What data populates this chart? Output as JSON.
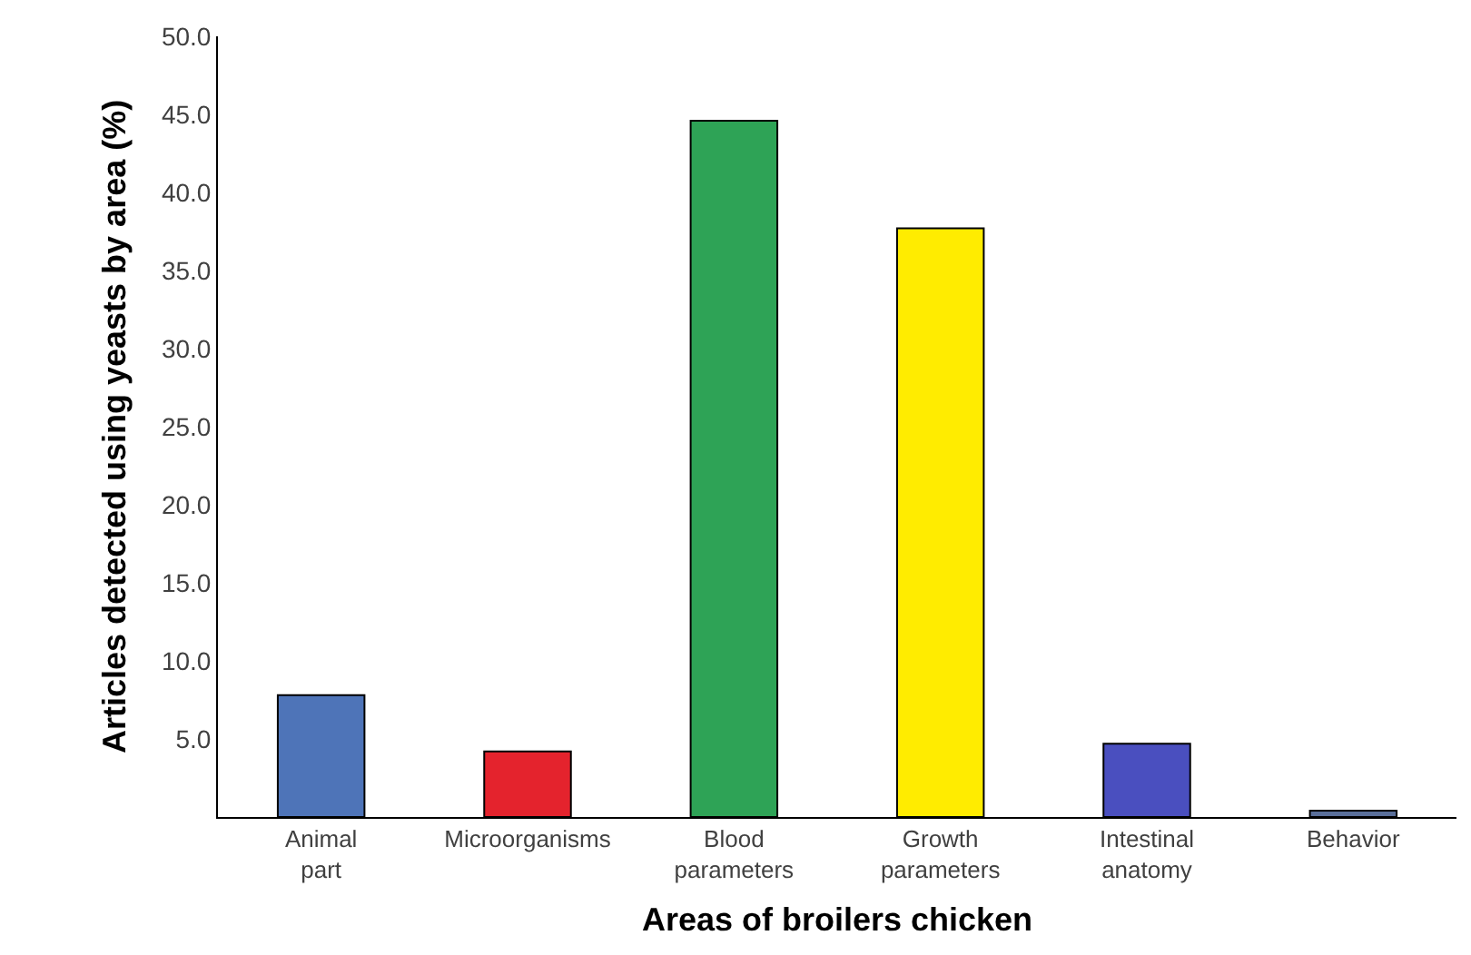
{
  "chart_data": {
    "type": "bar",
    "xlabel": "Areas of broilers chicken",
    "ylabel": "Articles detected using yeasts by area (%)",
    "categories": [
      "Animal part",
      "Microorganisms",
      "Blood parameters",
      "Growth parameters",
      "Intestinal anatomy",
      "Behavior"
    ],
    "values": [
      7.8,
      4.2,
      44.6,
      37.7,
      4.7,
      0.4
    ],
    "colors": [
      "#4e74b8",
      "#e4232d",
      "#2ea356",
      "#ffec00",
      "#4a4fbf",
      "#5a6f9a"
    ],
    "ylim": [
      0,
      50
    ],
    "yticks": [
      {
        "value": 5,
        "label": "5.0"
      },
      {
        "value": 10,
        "label": "10.0"
      },
      {
        "value": 15,
        "label": "15.0"
      },
      {
        "value": 20,
        "label": "20.0"
      },
      {
        "value": 25,
        "label": "25.0"
      },
      {
        "value": 30,
        "label": "30.0"
      },
      {
        "value": 35,
        "label": "35.0"
      },
      {
        "value": 40,
        "label": "40.0"
      },
      {
        "value": 45,
        "label": "45.0"
      },
      {
        "value": 50,
        "label": "50.0"
      }
    ],
    "grid": false
  }
}
